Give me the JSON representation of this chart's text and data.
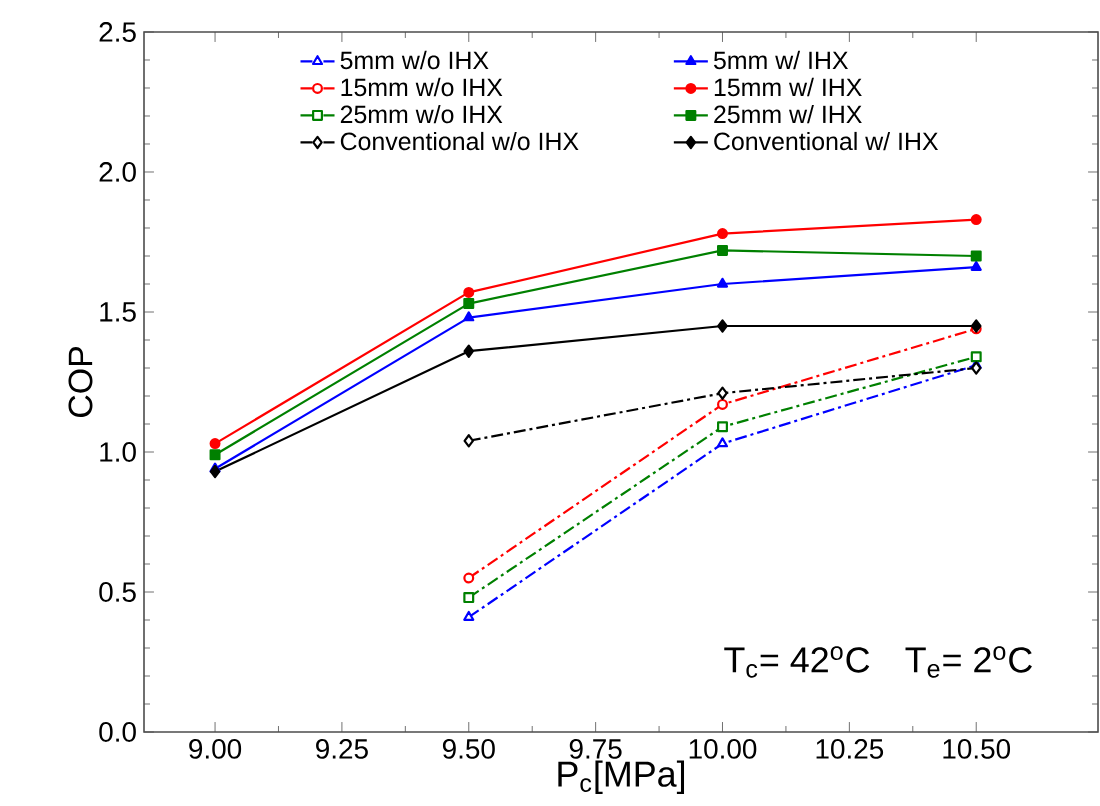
{
  "chart_data": {
    "type": "line",
    "xlabel": "P$_{c}$[MPa]",
    "ylabel": "COP",
    "xlim": [
      8.86,
      10.74
    ],
    "ylim": [
      0,
      2.5
    ],
    "xticks": [
      {
        "value": 9.0,
        "label": "9.00"
      },
      {
        "value": 9.25,
        "label": "9.25"
      },
      {
        "value": 9.5,
        "label": "9.50"
      },
      {
        "value": 9.75,
        "label": "9.75"
      },
      {
        "value": 10.0,
        "label": "10.00"
      },
      {
        "value": 10.25,
        "label": "10.25"
      },
      {
        "value": 10.5,
        "label": "10.50"
      }
    ],
    "yticks": [
      {
        "value": 0,
        "label": "0.0"
      },
      {
        "value": 0.5,
        "label": "0.5"
      },
      {
        "value": 1.0,
        "label": "1.0"
      },
      {
        "value": 1.5,
        "label": "1.5"
      },
      {
        "value": 2.0,
        "label": "2.0"
      },
      {
        "value": 2.5,
        "label": "2.5"
      }
    ],
    "grid": false,
    "legend": "top",
    "annotations": [
      "T$_{c}$= 42$^{o}$C",
      "T$_{e}$= 2$^{o}$C"
    ],
    "series": [
      {
        "name": "5mm w/o IHX",
        "color": "#0000ff",
        "marker": "triangle",
        "line_style": "dashdot",
        "x": [
          9.5,
          10.0,
          10.5
        ],
        "values": [
          0.41,
          1.03,
          1.31
        ]
      },
      {
        "name": "5mm w/ IHX",
        "color": "#0000ff",
        "marker": "triangle",
        "line_style": "solid",
        "x": [
          9.0,
          9.5,
          10.0,
          10.5
        ],
        "values": [
          0.94,
          1.48,
          1.6,
          1.66
        ]
      },
      {
        "name": "15mm w/o IHX",
        "color": "#ff0000",
        "marker": "circle",
        "line_style": "dashdot",
        "x": [
          9.5,
          10.0,
          10.5
        ],
        "values": [
          0.55,
          1.17,
          1.44
        ]
      },
      {
        "name": "15mm w/ IHX",
        "color": "#ff0000",
        "marker": "circle",
        "line_style": "solid",
        "x": [
          9.0,
          9.5,
          10.0,
          10.5
        ],
        "values": [
          1.03,
          1.57,
          1.78,
          1.83
        ]
      },
      {
        "name": "25mm w/o IHX",
        "color": "#008000",
        "marker": "square",
        "line_style": "dashdot",
        "x": [
          9.5,
          10.0,
          10.5
        ],
        "values": [
          0.48,
          1.09,
          1.34
        ]
      },
      {
        "name": "25mm w/ IHX",
        "color": "#008000",
        "marker": "square",
        "line_style": "solid",
        "x": [
          9.0,
          9.5,
          10.0,
          10.5
        ],
        "values": [
          0.99,
          1.53,
          1.72,
          1.7
        ]
      },
      {
        "name": "Conventional w/o IHX",
        "color": "#000000",
        "marker": "diamond",
        "line_style": "dashdot",
        "x": [
          9.5,
          10.0,
          10.5
        ],
        "values": [
          1.04,
          1.21,
          1.3
        ]
      },
      {
        "name": "Conventional w/ IHX",
        "color": "#000000",
        "marker": "diamond",
        "line_style": "solid",
        "x": [
          9.0,
          9.5,
          10.0,
          10.5
        ],
        "values": [
          0.93,
          1.36,
          1.45,
          1.45
        ]
      }
    ]
  }
}
